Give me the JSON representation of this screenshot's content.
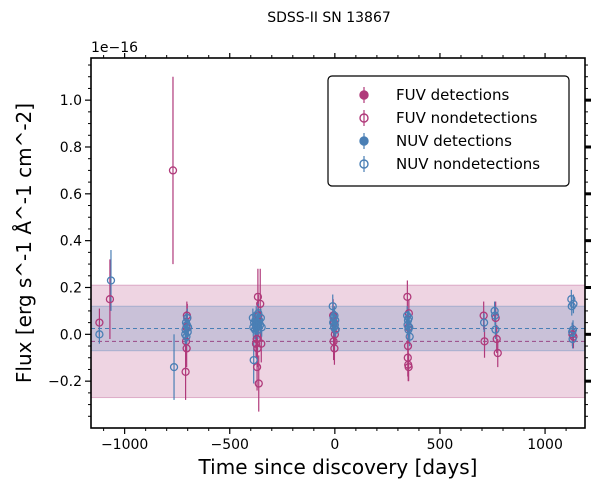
{
  "chart_data": {
    "type": "scatter",
    "title": "SDSS-II SN 13867",
    "xlabel": "Time since discovery [days]",
    "ylabel": "Flux [erg s^-1 Å^-1 cm^-2]",
    "y_scale_note": "1e−16",
    "y_scale_factor": 1e-16,
    "xlim": [
      -1160,
      1190
    ],
    "ylim": [
      -0.4,
      1.18
    ],
    "xticks": [
      -1000,
      -500,
      0,
      500,
      1000
    ],
    "xtick_labels": [
      "−1000",
      "−500",
      "0",
      "500",
      "1000"
    ],
    "yticks": [
      -0.2,
      0.0,
      0.2,
      0.4,
      0.6,
      0.8,
      1.0
    ],
    "ytick_labels": [
      "−0.2",
      "0.0",
      "0.2",
      "0.4",
      "0.6",
      "0.8",
      "1.0"
    ],
    "grid": false,
    "legend_position": "top-right",
    "colors": {
      "FUV": "#b0397a",
      "NUV": "#4a7fb5"
    },
    "bands": {
      "FUV": {
        "mean": -0.03,
        "lower": -0.27,
        "upper": 0.21
      },
      "NUV": {
        "mean": 0.025,
        "lower": -0.07,
        "upper": 0.12
      }
    },
    "series": [
      {
        "name": "FUV detections",
        "band": "FUV",
        "filled": true,
        "points": []
      },
      {
        "name": "FUV nondetections",
        "band": "FUV",
        "filled": false,
        "points": [
          {
            "x": -1120,
            "y": 0.05,
            "e": 0.06
          },
          {
            "x": -1070,
            "y": 0.15,
            "e": 0.17
          },
          {
            "x": -770,
            "y": 0.7,
            "e": 0.4
          },
          {
            "x": -710,
            "y": -0.16,
            "e": 0.12
          },
          {
            "x": -708,
            "y": -0.03,
            "e": 0.08
          },
          {
            "x": -706,
            "y": 0.03,
            "e": 0.07
          },
          {
            "x": -704,
            "y": 0.08,
            "e": 0.06
          },
          {
            "x": -702,
            "y": 0.07,
            "e": 0.06
          },
          {
            "x": -705,
            "y": -0.06,
            "e": 0.08
          },
          {
            "x": -366,
            "y": 0.16,
            "e": 0.12
          },
          {
            "x": -362,
            "y": -0.21,
            "e": 0.12
          },
          {
            "x": -370,
            "y": -0.14,
            "e": 0.1
          },
          {
            "x": -368,
            "y": -0.06,
            "e": 0.08
          },
          {
            "x": -364,
            "y": 0.08,
            "e": 0.09
          },
          {
            "x": -372,
            "y": -0.02,
            "e": 0.07
          },
          {
            "x": -355,
            "y": 0.13,
            "e": 0.15
          },
          {
            "x": -350,
            "y": -0.04,
            "e": 0.08
          },
          {
            "x": -375,
            "y": -0.04,
            "e": 0.06
          },
          {
            "x": -8,
            "y": 0.08,
            "e": 0.07
          },
          {
            "x": -6,
            "y": -0.03,
            "e": 0.08
          },
          {
            "x": -4,
            "y": 0.05,
            "e": 0.06
          },
          {
            "x": -2,
            "y": -0.06,
            "e": 0.07
          },
          {
            "x": 0,
            "y": 0.0,
            "e": 0.05
          },
          {
            "x": 2,
            "y": 0.02,
            "e": 0.06
          },
          {
            "x": 345,
            "y": 0.16,
            "e": 0.07
          },
          {
            "x": 347,
            "y": -0.1,
            "e": 0.08
          },
          {
            "x": 349,
            "y": -0.13,
            "e": 0.07
          },
          {
            "x": 351,
            "y": -0.14,
            "e": 0.06
          },
          {
            "x": 348,
            "y": -0.05,
            "e": 0.06
          },
          {
            "x": 350,
            "y": 0.03,
            "e": 0.06
          },
          {
            "x": 352,
            "y": 0.09,
            "e": 0.06
          },
          {
            "x": 708,
            "y": 0.08,
            "e": 0.06
          },
          {
            "x": 712,
            "y": -0.03,
            "e": 0.07
          },
          {
            "x": 765,
            "y": 0.07,
            "e": 0.07
          },
          {
            "x": 770,
            "y": -0.02,
            "e": 0.06
          },
          {
            "x": 775,
            "y": -0.08,
            "e": 0.06
          },
          {
            "x": 1130,
            "y": 0.0,
            "e": 0.05
          },
          {
            "x": 1135,
            "y": -0.01,
            "e": 0.05
          }
        ]
      },
      {
        "name": "NUV detections",
        "band": "NUV",
        "filled": true,
        "points": []
      },
      {
        "name": "NUV nondetections",
        "band": "NUV",
        "filled": false,
        "points": [
          {
            "x": -1120,
            "y": 0.0,
            "e": 0.04
          },
          {
            "x": -1065,
            "y": 0.23,
            "e": 0.13
          },
          {
            "x": -765,
            "y": -0.14,
            "e": 0.14
          },
          {
            "x": -712,
            "y": 0.0,
            "e": 0.05
          },
          {
            "x": -710,
            "y": 0.02,
            "e": 0.04
          },
          {
            "x": -708,
            "y": 0.05,
            "e": 0.04
          },
          {
            "x": -706,
            "y": -0.01,
            "e": 0.04
          },
          {
            "x": -704,
            "y": 0.04,
            "e": 0.04
          },
          {
            "x": -702,
            "y": 0.07,
            "e": 0.04
          },
          {
            "x": -700,
            "y": 0.01,
            "e": 0.04
          },
          {
            "x": -698,
            "y": 0.03,
            "e": 0.04
          },
          {
            "x": -390,
            "y": 0.07,
            "e": 0.04
          },
          {
            "x": -388,
            "y": 0.03,
            "e": 0.04
          },
          {
            "x": -386,
            "y": -0.11,
            "e": 0.1
          },
          {
            "x": -384,
            "y": 0.05,
            "e": 0.04
          },
          {
            "x": -380,
            "y": 0.02,
            "e": 0.04
          },
          {
            "x": -378,
            "y": 0.06,
            "e": 0.04
          },
          {
            "x": -376,
            "y": 0.04,
            "e": 0.04
          },
          {
            "x": -374,
            "y": 0.08,
            "e": 0.04
          },
          {
            "x": -372,
            "y": 0.03,
            "e": 0.04
          },
          {
            "x": -368,
            "y": 0.05,
            "e": 0.04
          },
          {
            "x": -366,
            "y": 0.02,
            "e": 0.04
          },
          {
            "x": -364,
            "y": 0.09,
            "e": 0.04
          },
          {
            "x": -360,
            "y": 0.06,
            "e": 0.04
          },
          {
            "x": -356,
            "y": 0.04,
            "e": 0.04
          },
          {
            "x": -352,
            "y": 0.07,
            "e": 0.04
          },
          {
            "x": -348,
            "y": 0.03,
            "e": 0.04
          },
          {
            "x": -10,
            "y": 0.12,
            "e": 0.05
          },
          {
            "x": -8,
            "y": 0.05,
            "e": 0.04
          },
          {
            "x": -6,
            "y": 0.07,
            "e": 0.04
          },
          {
            "x": -4,
            "y": 0.03,
            "e": 0.04
          },
          {
            "x": -2,
            "y": 0.08,
            "e": 0.04
          },
          {
            "x": 0,
            "y": 0.04,
            "e": 0.04
          },
          {
            "x": 2,
            "y": 0.06,
            "e": 0.04
          },
          {
            "x": 4,
            "y": 0.02,
            "e": 0.04
          },
          {
            "x": 344,
            "y": 0.08,
            "e": 0.04
          },
          {
            "x": 346,
            "y": 0.04,
            "e": 0.04
          },
          {
            "x": 348,
            "y": 0.06,
            "e": 0.04
          },
          {
            "x": 350,
            "y": 0.02,
            "e": 0.04
          },
          {
            "x": 352,
            "y": 0.07,
            "e": 0.04
          },
          {
            "x": 354,
            "y": 0.03,
            "e": 0.04
          },
          {
            "x": 356,
            "y": -0.01,
            "e": 0.04
          },
          {
            "x": 710,
            "y": 0.05,
            "e": 0.04
          },
          {
            "x": 760,
            "y": 0.1,
            "e": 0.04
          },
          {
            "x": 762,
            "y": 0.08,
            "e": 0.04
          },
          {
            "x": 764,
            "y": 0.02,
            "e": 0.04
          },
          {
            "x": 1125,
            "y": 0.15,
            "e": 0.04
          },
          {
            "x": 1127,
            "y": 0.12,
            "e": 0.04
          },
          {
            "x": 1129,
            "y": 0.01,
            "e": 0.04
          },
          {
            "x": 1131,
            "y": -0.02,
            "e": 0.04
          },
          {
            "x": 1133,
            "y": 0.02,
            "e": 0.04
          },
          {
            "x": 1135,
            "y": 0.13,
            "e": 0.04
          }
        ]
      }
    ]
  }
}
